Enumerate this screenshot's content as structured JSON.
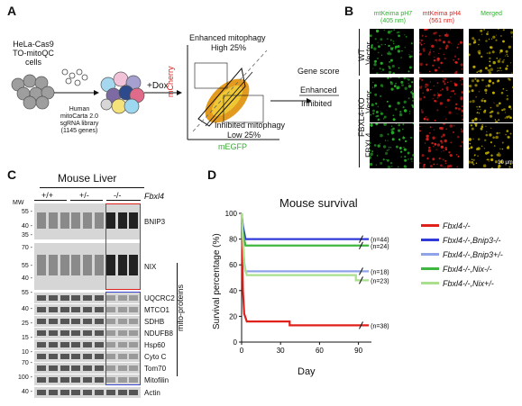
{
  "panels": {
    "a": "A",
    "b": "B",
    "c": "C",
    "d": "D"
  },
  "panelA": {
    "cells_label": "HeLa-Cas9\nTO-mitoQC\ncells",
    "library_label": "Human\nmitoCarta 2.0\nsgRNA library\n(1145 genes)",
    "dox_label": "+Dox",
    "enhanced_label": "Enhanced mitophagy",
    "high_label": "High 25%",
    "inhibited_label": "Inhibited mitophagy",
    "low_label": "Low 25%",
    "ylabel": "mCherry",
    "xlabel": "mEGFP",
    "gene_score": "Gene score",
    "enhanced": "Enhanced",
    "inhibited": "Inhibited",
    "colors": {
      "mcherry": "#e0201b",
      "megfp": "#3aa935"
    }
  },
  "panelB": {
    "col1": "mtKeima pH7",
    "col1b": "(405 nm)",
    "col2": "mtKeima pH4",
    "col2b": "(561 nm)",
    "col3": "Merged",
    "wt": "WT",
    "ko": "FBXL4-KO",
    "rows": [
      "Vector",
      "Vector",
      "FBXL4"
    ],
    "scale": "10 μm",
    "colors": {
      "green": "#27b327",
      "red": "#e0201b",
      "merged": "#c8b400"
    }
  },
  "panelC": {
    "title": "Mouse Liver",
    "genotypes": [
      "+/+",
      "+/-",
      "-/-"
    ],
    "gene": "Fbxl4",
    "mw": "MW",
    "markers": [
      "55",
      "40",
      "35",
      "70",
      "55",
      "40",
      "55",
      "40",
      "25",
      "15",
      "10",
      "70",
      "100",
      "40"
    ],
    "proteins": [
      "BNIP3",
      "NIX",
      "UQCRC2",
      "MTCO1",
      "SDHB",
      "NDUFB8",
      "Hsp60",
      "Cyto C",
      "Tom70",
      "Mitofilin",
      "Actin"
    ],
    "mito_label": "mito-proteins",
    "colors": {
      "red_box": "#e0201b",
      "blue_box": "#3a48d0"
    }
  },
  "chart_data": {
    "type": "line",
    "title": "Mouse survival",
    "xlabel": "Day",
    "ylabel": "Survival percentage (%)",
    "xticks": [
      "0",
      "30",
      "60",
      "90"
    ],
    "yticks": [
      "0",
      "20",
      "40",
      "60",
      "80",
      "100"
    ],
    "xlim": [
      0,
      100
    ],
    "ylim": [
      0,
      100
    ],
    "series": [
      {
        "name": "Fbxl4-/-",
        "color": "#e0201b",
        "n": "(n=38)",
        "points": [
          [
            0,
            100
          ],
          [
            1,
            40
          ],
          [
            2,
            22
          ],
          [
            4,
            16
          ],
          [
            37,
            16
          ],
          [
            37,
            13
          ],
          [
            98,
            13
          ]
        ]
      },
      {
        "name": "Fbxl4-/-,Bnip3-/-",
        "color": "#2f3ad8",
        "n": "(n=44)",
        "points": [
          [
            0,
            100
          ],
          [
            1,
            90
          ],
          [
            3,
            80
          ],
          [
            98,
            80
          ]
        ]
      },
      {
        "name": "Fbxl4-/-,Bnip3+/-",
        "color": "#8fa3e8",
        "n": "(n=18)",
        "points": [
          [
            0,
            100
          ],
          [
            1,
            80
          ],
          [
            2,
            62
          ],
          [
            3,
            55
          ],
          [
            98,
            55
          ]
        ]
      },
      {
        "name": "Fbxl4-/-,Nix-/-",
        "color": "#3fb63f",
        "n": "(n=24)",
        "points": [
          [
            0,
            100
          ],
          [
            1,
            85
          ],
          [
            3,
            75
          ],
          [
            98,
            75
          ]
        ]
      },
      {
        "name": "Fbxl4-/-,Nix+/-",
        "color": "#a9df8d",
        "n": "(n=23)",
        "points": [
          [
            0,
            100
          ],
          [
            2,
            60
          ],
          [
            4,
            52
          ],
          [
            88,
            52
          ],
          [
            88,
            48
          ],
          [
            98,
            48
          ]
        ]
      }
    ]
  }
}
